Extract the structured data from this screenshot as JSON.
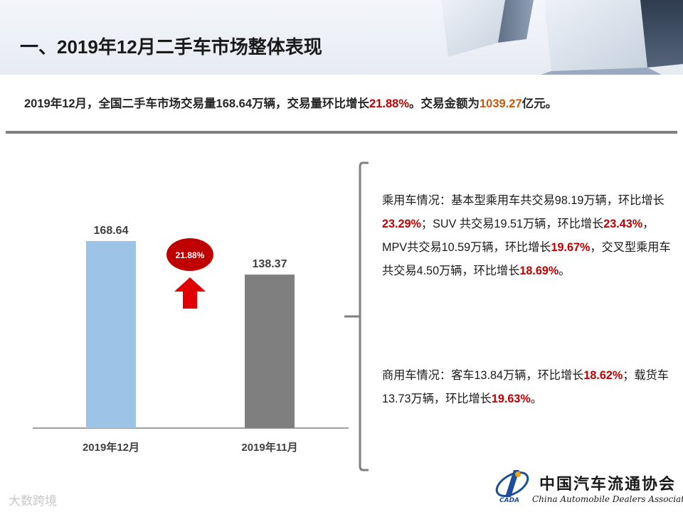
{
  "header": {
    "title": "一、2019年12月二手车市场整体表现"
  },
  "summary": {
    "part1": "2019年12月，全国二手车市场交易量168.64万辆，交易量环比增长",
    "growth": "21.88%",
    "part2": "。交易金额为",
    "amount": "1039.27",
    "part3": "亿元。"
  },
  "chart_data": {
    "type": "bar",
    "categories": [
      "2019年12月",
      "2019年11月"
    ],
    "values": [
      168.64,
      138.37
    ],
    "value_labels": [
      "168.64",
      "138.37"
    ],
    "bar_colors": [
      "#9dc3e6",
      "#7f7f7f"
    ],
    "annotation": "21.88%",
    "annotation_color": "#c00000",
    "ylim": [
      0,
      200
    ],
    "title": "",
    "xlabel": "",
    "ylabel": ""
  },
  "passenger": {
    "s1": "乘用车情况：基本型乘用车共交易98.19万辆，环比增长",
    "r1": "23.29%",
    "s2": "；SUV 共交易19.51万辆，环比增长",
    "r2": "23.43%",
    "s3": "，MPV共交易10.59万辆，环比增长",
    "r3": "19.67%",
    "s4": "，交叉型乘用车共交易4.50万辆，环比增长",
    "r4": "18.69%",
    "s5": "。"
  },
  "commercial": {
    "s1": "商用车情况：客车13.84万辆，环比增长",
    "r1": "18.62%",
    "s2": "；载货车13.73万辆，环比增长",
    "r2": "19.63%",
    "s3": "。"
  },
  "logo": {
    "cn": "中国汽车流通协会",
    "en": "China Automobile Dealers Association",
    "abbr": "CADA"
  },
  "watermark": "大数跨境",
  "colors": {
    "accent_red": "#c00000",
    "accent_orange": "#c55a11"
  }
}
